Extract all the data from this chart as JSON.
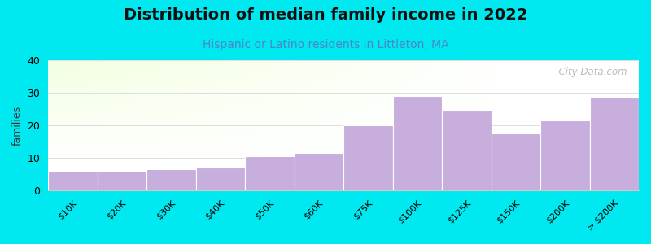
{
  "title": "Distribution of median family income in 2022",
  "subtitle": "Hispanic or Latino residents in Littleton, MA",
  "categories": [
    "$10K",
    "$20K",
    "$30K",
    "$40K",
    "$50K",
    "$60K",
    "$75K",
    "$100K",
    "$125K",
    "$150K",
    "$200K",
    "> $200K"
  ],
  "values": [
    6,
    6,
    6.5,
    7,
    10.5,
    11.5,
    20,
    29,
    24.5,
    17.5,
    21.5,
    28.5
  ],
  "bar_color": "#c8aedd",
  "background_outer": "#00e8f0",
  "plot_bg_color_topleft": "#e8f5e0",
  "plot_bg_color_white": "#ffffff",
  "ylabel": "families",
  "ylim": [
    0,
    40
  ],
  "yticks": [
    0,
    10,
    20,
    30,
    40
  ],
  "title_fontsize": 14,
  "subtitle_fontsize": 10,
  "subtitle_color": "#4a86c8",
  "watermark": "  City-Data.com",
  "watermark_color": "#aaaaaa",
  "grid_color": "#dddddd",
  "bar_edge_color": "#ffffff",
  "figsize": [
    8.0,
    3.0
  ],
  "dpi": 100
}
